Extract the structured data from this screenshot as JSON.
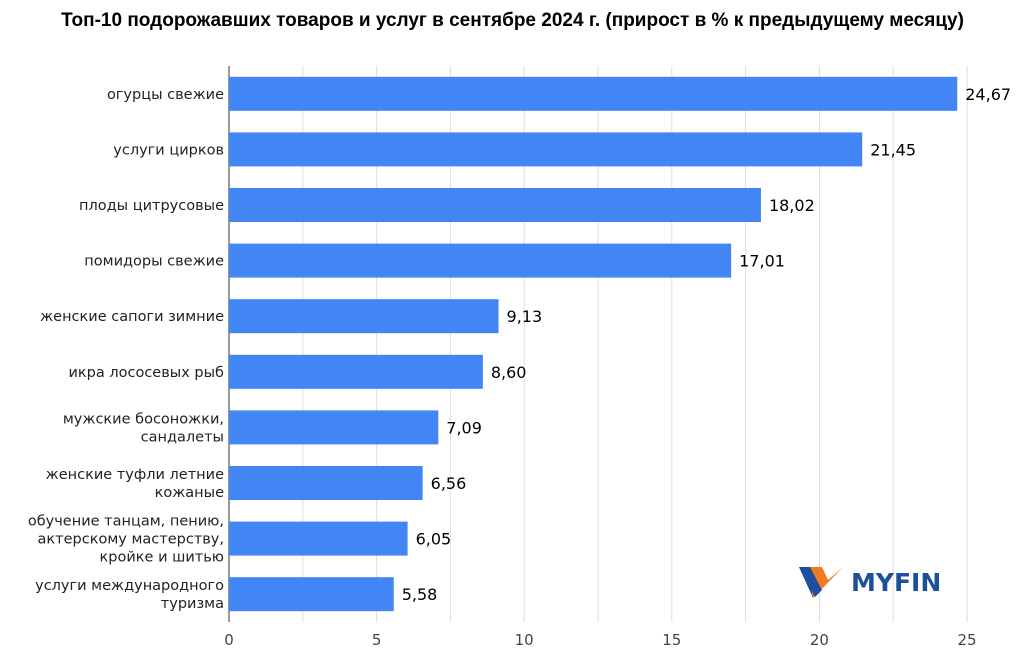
{
  "chart_data": {
    "type": "bar",
    "orientation": "horizontal",
    "title": "Топ-10 подорожавших товаров и услуг в сентябре 2024 г. (прирост в % к предыдущему месяцу)",
    "categories": [
      [
        "огурцы свежие"
      ],
      [
        "услуги цирков"
      ],
      [
        "плоды цитрусовые"
      ],
      [
        "помидоры свежие"
      ],
      [
        "женские сапоги зимние"
      ],
      [
        "икра лососевых рыб"
      ],
      [
        "мужские босоножки,",
        "сандалеты"
      ],
      [
        "женские туфли летние",
        "кожаные"
      ],
      [
        "обучение танцам, пению,",
        "актерскому мастерству,",
        "кройке и шитью"
      ],
      [
        "услуги международного",
        "туризма"
      ]
    ],
    "values": [
      24.67,
      21.45,
      18.02,
      17.01,
      9.13,
      8.6,
      7.09,
      6.56,
      6.05,
      5.58
    ],
    "value_labels": [
      "24,67",
      "21,45",
      "18,02",
      "17,01",
      "9,13",
      "8,60",
      "7,09",
      "6,56",
      "6,05",
      "5,58"
    ],
    "xlim": [
      0,
      25
    ],
    "xticks": [
      0,
      5,
      10,
      15,
      20,
      25
    ],
    "grid": true,
    "bar_color": "#4285f4"
  },
  "logo": {
    "text": "MYFIN",
    "blue": "#1c4f9c",
    "orange": "#f47a20"
  }
}
